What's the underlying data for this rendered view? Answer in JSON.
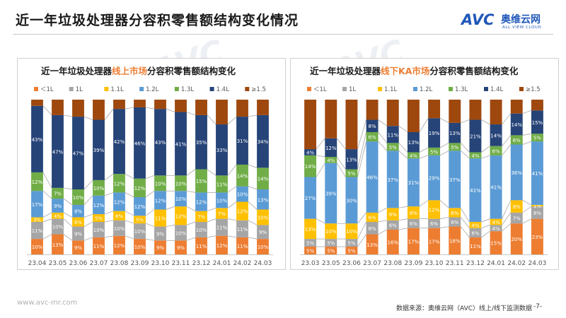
{
  "header": {
    "title": "近一年垃圾处理器分容积零售额结构变化情况"
  },
  "logo": {
    "mark": "AVC",
    "cn": "奥维云网",
    "sub": "ALL VIEW CLOUD"
  },
  "footer": {
    "url": "www.avc-mr.com",
    "source": "数据来源：奥维云网（AVC）线上/线下监测数据",
    "page": "-7-"
  },
  "colors": {
    "<1L": "#ed7d31",
    "1L": "#a5a5a5",
    "1.1L": "#ffc000",
    "1.2L": "#5b9bd5",
    "1.3L": "#70ad47",
    "1.4L": "#264478",
    "≥1.5": "#9e480e"
  },
  "chart_data": [
    {
      "type": "bar",
      "stacked": true,
      "title_parts": [
        "近一年垃圾处理器",
        "线上市场",
        "分容积零售额结构变化"
      ],
      "categories": [
        "23.04",
        "23.05",
        "23.06",
        "23.07",
        "23.08",
        "23.09",
        "23.10",
        "23.11",
        "23.12",
        "24.01",
        "24.02",
        "24.03"
      ],
      "legend_labels": [
        "＜1L",
        "1L",
        "1.1L",
        "1.2L",
        "1.3L",
        "1.4L",
        "≥1.5"
      ],
      "series": [
        {
          "name": "<1L",
          "values": [
            10,
            13,
            9,
            11,
            12,
            10,
            9,
            9,
            11,
            12,
            11,
            10
          ],
          "labels": [
            "10%",
            "13%",
            "9%",
            "11%",
            "12%",
            "10%",
            "9%",
            "9%",
            "11%",
            "12%",
            "11%",
            "10%"
          ]
        },
        {
          "name": "1L",
          "values": [
            11,
            10,
            9,
            10,
            10,
            10,
            9,
            10,
            10,
            11,
            11,
            9
          ],
          "labels": [
            "11%",
            "10%",
            "9%",
            "10%",
            "10%",
            "10%",
            "9%",
            "10%",
            "10%",
            "11%",
            "11%",
            "9%"
          ]
        },
        {
          "name": "1.1L",
          "values": [
            3,
            4,
            6,
            5,
            6,
            5,
            11,
            12,
            7,
            7,
            12,
            10
          ],
          "labels": [
            "3%",
            "4%",
            "6%",
            "5%",
            "6%",
            "5%",
            "11%",
            "12%",
            "7%",
            "7%",
            "12%",
            "10%"
          ]
        },
        {
          "name": "1.2L",
          "values": [
            17,
            9,
            8,
            12,
            12,
            12,
            12,
            10,
            12,
            10,
            10,
            13
          ],
          "labels": [
            "17%",
            "9%",
            "8%",
            "12%",
            "12%",
            "12%",
            "12%",
            "10%",
            "12%",
            "10%",
            "10%",
            "13%"
          ]
        },
        {
          "name": "1.3L",
          "values": [
            12,
            7,
            10,
            10,
            12,
            12,
            10,
            10,
            15,
            11,
            14,
            14
          ],
          "labels": [
            "12%",
            "7%",
            "10%",
            "10%",
            "12%",
            "12%",
            "10%",
            "10%",
            "15%",
            "11%",
            "14%",
            "14%"
          ]
        },
        {
          "name": "1.4L",
          "values": [
            43,
            47,
            47,
            39,
            42,
            46,
            43,
            41,
            35,
            33,
            31,
            34
          ],
          "labels": [
            "43%",
            "47%",
            "47%",
            "39%",
            "42%",
            "46%",
            "43%",
            "41%",
            "35%",
            "33%",
            "31%",
            "34%"
          ]
        },
        {
          "name": "≥1.5",
          "values": [
            4,
            10,
            11,
            13,
            6,
            5,
            6,
            8,
            10,
            16,
            11,
            10
          ],
          "labels": [
            "",
            "",
            "",
            "",
            "",
            "",
            "",
            "",
            "",
            "",
            "",
            ""
          ]
        }
      ],
      "ylim": [
        0,
        100
      ]
    },
    {
      "type": "bar",
      "stacked": true,
      "title_parts": [
        "近一年垃圾处理器",
        "线下KA市场",
        "分容积零售额结构变化"
      ],
      "categories": [
        "23.03",
        "23.05",
        "23.06",
        "23.07",
        "23.08",
        "23.09",
        "23.10",
        "23.11",
        "23.12",
        "24.01",
        "24.02",
        "24.03"
      ],
      "legend_labels": [
        "＜1L",
        "1L",
        "1.1L",
        "1.2L",
        "1.3L",
        "1.4L",
        "≥1.5"
      ],
      "series": [
        {
          "name": "<1L",
          "values": [
            5,
            5,
            5,
            13,
            16,
            17,
            17,
            18,
            11,
            15,
            20,
            23
          ],
          "labels": [
            "5%",
            "5%",
            "5%",
            "13%",
            "16%",
            "17%",
            "17%",
            "18%",
            "11%",
            "15%",
            "20%",
            "23%"
          ]
        },
        {
          "name": "1L",
          "values": [
            5,
            5,
            5,
            8,
            6,
            6,
            6,
            6,
            6,
            4,
            7,
            8
          ],
          "labels": [
            "5%",
            "5%",
            "5%",
            "8%",
            "6%",
            "6%",
            "6%",
            "6%",
            "6%",
            "4%",
            "7%",
            "8%"
          ]
        },
        {
          "name": "1.1L",
          "values": [
            13,
            10,
            10,
            6,
            8,
            8,
            12,
            6,
            4,
            4,
            8,
            1
          ],
          "labels": [
            "13%",
            "10%",
            "10%",
            "6%",
            "8%",
            "8%",
            "12%",
            "6%",
            "4%",
            "4%",
            "8%",
            "1%"
          ]
        },
        {
          "name": "1.2L",
          "values": [
            27,
            39,
            30,
            46,
            37,
            31,
            29,
            37,
            41,
            41,
            36,
            41
          ],
          "labels": [
            "27%",
            "39%",
            "30%",
            "46%",
            "37%",
            "31%",
            "29%",
            "37%",
            "41%",
            "41%",
            "36%",
            "41%"
          ]
        },
        {
          "name": "1.3L",
          "values": [
            14,
            4,
            5,
            6,
            5,
            4,
            5,
            5,
            4,
            6,
            6,
            5
          ],
          "labels": [
            "14%",
            "4%",
            "5%",
            "6%",
            "5%",
            "4%",
            "5%",
            "5%",
            "4%",
            "6%",
            "6%",
            "5%"
          ]
        },
        {
          "name": "1.4L",
          "values": [
            4,
            12,
            13,
            8,
            11,
            13,
            19,
            13,
            21,
            14,
            14,
            15
          ],
          "labels": [
            "4%",
            "12%",
            "13%",
            "8%",
            "11%",
            "13%",
            "19%",
            "13%",
            "21%",
            "14%",
            "14%",
            "15%"
          ]
        },
        {
          "name": "≥1.5",
          "values": [
            32,
            25,
            32,
            13,
            17,
            21,
            12,
            15,
            13,
            16,
            9,
            7
          ],
          "labels": [
            "",
            "",
            "",
            "",
            "",
            "",
            "",
            "",
            "",
            "",
            "",
            ""
          ]
        }
      ],
      "ylim": [
        0,
        100
      ]
    }
  ]
}
